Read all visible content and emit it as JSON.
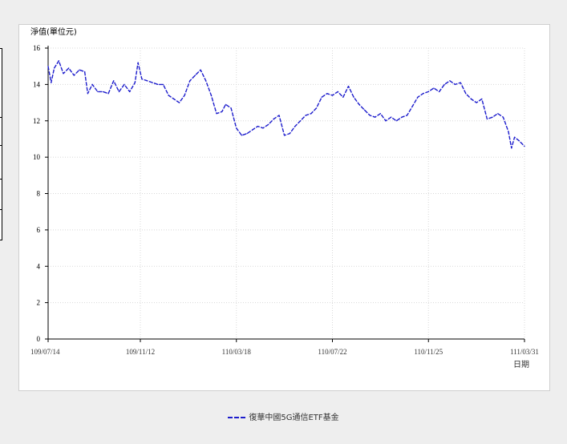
{
  "chart_data": {
    "type": "line",
    "ylabel": "淨值(單位元)",
    "xlabel": "日期",
    "ylim": [
      0,
      16
    ],
    "yticks": [
      0,
      2,
      4,
      6,
      8,
      10,
      12,
      14,
      16
    ],
    "xticks": [
      "109/07/14",
      "109/11/12",
      "110/03/18",
      "110/07/22",
      "110/11/25",
      "111/03/31"
    ],
    "grid": true,
    "legend": "bottom",
    "series": [
      {
        "name": "復華中國5G通信ETF基金",
        "color": "#1c1ccc",
        "points": [
          [
            "109/07/14",
            15.0
          ],
          [
            "109/07/18",
            14.1
          ],
          [
            "109/07/22",
            14.9
          ],
          [
            "109/07/28",
            15.3
          ],
          [
            "109/08/03",
            14.6
          ],
          [
            "109/08/10",
            14.9
          ],
          [
            "109/08/17",
            14.5
          ],
          [
            "109/08/24",
            14.8
          ],
          [
            "109/08/31",
            14.7
          ],
          [
            "109/09/04",
            13.5
          ],
          [
            "109/09/10",
            14.0
          ],
          [
            "109/09/17",
            13.6
          ],
          [
            "109/09/24",
            13.6
          ],
          [
            "109/10/01",
            13.5
          ],
          [
            "109/10/08",
            14.2
          ],
          [
            "109/10/15",
            13.6
          ],
          [
            "109/10/22",
            14.0
          ],
          [
            "109/10/29",
            13.6
          ],
          [
            "109/11/05",
            14.1
          ],
          [
            "109/11/09",
            15.2
          ],
          [
            "109/11/14",
            14.3
          ],
          [
            "109/11/21",
            14.2
          ],
          [
            "109/11/28",
            14.1
          ],
          [
            "109/12/05",
            14.0
          ],
          [
            "109/12/12",
            14.0
          ],
          [
            "109/12/19",
            13.4
          ],
          [
            "109/12/26",
            13.2
          ],
          [
            "110/01/02",
            13.0
          ],
          [
            "110/01/09",
            13.4
          ],
          [
            "110/01/16",
            14.2
          ],
          [
            "110/01/23",
            14.5
          ],
          [
            "110/01/30",
            14.8
          ],
          [
            "110/02/06",
            14.2
          ],
          [
            "110/02/13",
            13.4
          ],
          [
            "110/02/20",
            12.4
          ],
          [
            "110/02/27",
            12.5
          ],
          [
            "110/03/04",
            12.9
          ],
          [
            "110/03/11",
            12.7
          ],
          [
            "110/03/18",
            11.6
          ],
          [
            "110/03/25",
            11.2
          ],
          [
            "110/04/01",
            11.3
          ],
          [
            "110/04/08",
            11.5
          ],
          [
            "110/04/15",
            11.7
          ],
          [
            "110/04/22",
            11.6
          ],
          [
            "110/04/29",
            11.8
          ],
          [
            "110/05/06",
            12.1
          ],
          [
            "110/05/13",
            12.3
          ],
          [
            "110/05/20",
            11.2
          ],
          [
            "110/05/27",
            11.3
          ],
          [
            "110/06/03",
            11.7
          ],
          [
            "110/06/10",
            12.0
          ],
          [
            "110/06/17",
            12.3
          ],
          [
            "110/06/24",
            12.4
          ],
          [
            "110/07/01",
            12.7
          ],
          [
            "110/07/08",
            13.3
          ],
          [
            "110/07/15",
            13.5
          ],
          [
            "110/07/22",
            13.4
          ],
          [
            "110/07/29",
            13.6
          ],
          [
            "110/08/05",
            13.3
          ],
          [
            "110/08/12",
            13.9
          ],
          [
            "110/08/19",
            13.3
          ],
          [
            "110/08/26",
            12.9
          ],
          [
            "110/09/02",
            12.6
          ],
          [
            "110/09/09",
            12.3
          ],
          [
            "110/09/16",
            12.2
          ],
          [
            "110/09/23",
            12.4
          ],
          [
            "110/09/30",
            12.0
          ],
          [
            "110/10/07",
            12.2
          ],
          [
            "110/10/14",
            12.0
          ],
          [
            "110/10/21",
            12.2
          ],
          [
            "110/10/28",
            12.3
          ],
          [
            "110/11/04",
            12.8
          ],
          [
            "110/11/11",
            13.3
          ],
          [
            "110/11/18",
            13.5
          ],
          [
            "110/11/25",
            13.6
          ],
          [
            "110/12/02",
            13.8
          ],
          [
            "110/12/09",
            13.6
          ],
          [
            "110/12/16",
            14.0
          ],
          [
            "110/12/23",
            14.2
          ],
          [
            "110/12/30",
            14.0
          ],
          [
            "111/01/06",
            14.1
          ],
          [
            "111/01/13",
            13.5
          ],
          [
            "111/01/20",
            13.2
          ],
          [
            "111/01/27",
            13.0
          ],
          [
            "111/02/03",
            13.2
          ],
          [
            "111/02/10",
            12.1
          ],
          [
            "111/02/17",
            12.2
          ],
          [
            "111/02/24",
            12.4
          ],
          [
            "111/03/03",
            12.2
          ],
          [
            "111/03/10",
            11.4
          ],
          [
            "111/03/14",
            10.5
          ],
          [
            "111/03/18",
            11.1
          ],
          [
            "111/03/24",
            10.9
          ],
          [
            "111/03/31",
            10.6
          ]
        ]
      }
    ]
  }
}
